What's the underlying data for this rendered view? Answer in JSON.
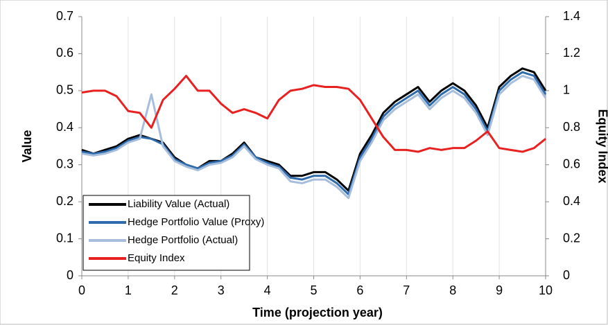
{
  "chart_data": {
    "type": "line",
    "x_label": "Time (projection year)",
    "y_label": "Value",
    "y2_label": "Equity Index",
    "x": [
      0,
      0.25,
      0.5,
      0.75,
      1,
      1.25,
      1.5,
      1.75,
      2,
      2.25,
      2.5,
      2.75,
      3,
      3.25,
      3.5,
      3.75,
      4,
      4.25,
      4.5,
      4.75,
      5,
      5.25,
      5.5,
      5.75,
      6,
      6.25,
      6.5,
      6.75,
      7,
      7.25,
      7.5,
      7.75,
      8,
      8.25,
      8.5,
      8.75,
      9,
      9.25,
      9.5,
      9.75,
      10
    ],
    "series": [
      {
        "name": "Liability Value (Actual)",
        "color": "#000000",
        "values": [
          0.34,
          0.33,
          0.34,
          0.35,
          0.37,
          0.38,
          0.37,
          0.36,
          0.32,
          0.3,
          0.29,
          0.31,
          0.31,
          0.33,
          0.36,
          0.32,
          0.31,
          0.3,
          0.27,
          0.27,
          0.28,
          0.28,
          0.26,
          0.23,
          0.33,
          0.38,
          0.44,
          0.47,
          0.49,
          0.51,
          0.47,
          0.5,
          0.52,
          0.5,
          0.46,
          0.4,
          0.51,
          0.54,
          0.56,
          0.55,
          0.5
        ]
      },
      {
        "name": "Hedge Portfolio Value (Proxy)",
        "color": "#2e6bad",
        "values": [
          0.335,
          0.33,
          0.335,
          0.345,
          0.365,
          0.375,
          0.37,
          0.355,
          0.315,
          0.3,
          0.29,
          0.305,
          0.31,
          0.325,
          0.355,
          0.32,
          0.305,
          0.295,
          0.265,
          0.26,
          0.27,
          0.27,
          0.25,
          0.22,
          0.32,
          0.37,
          0.43,
          0.46,
          0.48,
          0.5,
          0.46,
          0.49,
          0.51,
          0.49,
          0.45,
          0.39,
          0.5,
          0.53,
          0.55,
          0.54,
          0.49
        ]
      },
      {
        "name": "Hedge Portfolio (Actual)",
        "color": "#a6bddb",
        "values": [
          0.33,
          0.325,
          0.33,
          0.34,
          0.36,
          0.37,
          0.49,
          0.35,
          0.31,
          0.295,
          0.285,
          0.3,
          0.305,
          0.32,
          0.35,
          0.315,
          0.3,
          0.29,
          0.255,
          0.25,
          0.26,
          0.26,
          0.24,
          0.21,
          0.31,
          0.36,
          0.42,
          0.45,
          0.47,
          0.49,
          0.45,
          0.48,
          0.5,
          0.48,
          0.44,
          0.38,
          0.49,
          0.52,
          0.54,
          0.53,
          0.48
        ]
      },
      {
        "name": "Equity Index",
        "color": "#e8201f",
        "axis": "y2",
        "values": [
          0.99,
          1.0,
          1.0,
          0.97,
          0.89,
          0.88,
          0.8,
          0.95,
          1.01,
          1.08,
          1.0,
          1.0,
          0.93,
          0.88,
          0.9,
          0.88,
          0.85,
          0.95,
          1.0,
          1.01,
          1.03,
          1.02,
          1.02,
          1.01,
          0.95,
          0.85,
          0.75,
          0.68,
          0.68,
          0.67,
          0.69,
          0.68,
          0.69,
          0.69,
          0.73,
          0.78,
          0.69,
          0.68,
          0.67,
          0.69,
          0.74
        ]
      }
    ],
    "xlim": [
      0,
      10
    ],
    "xticks": [
      0,
      1,
      2,
      3,
      4,
      5,
      6,
      7,
      8,
      9,
      10
    ],
    "ylim": [
      0,
      0.7
    ],
    "yticks": [
      0,
      0.1,
      0.2,
      0.3,
      0.4,
      0.5,
      0.6,
      0.7
    ],
    "y2lim": [
      0,
      1.4
    ],
    "y2ticks": [
      0,
      0.2,
      0.4,
      0.6,
      0.8,
      1,
      1.2,
      1.4
    ],
    "grid": "x",
    "legend": "lower left"
  }
}
